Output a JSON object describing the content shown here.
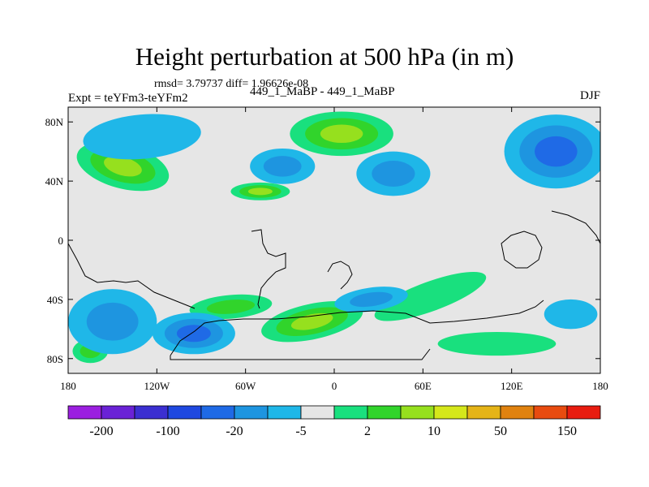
{
  "chart_data": {
    "type": "heatmap",
    "title": "Height perturbation at 500 hPa (in m)",
    "stats_text": "rmsd= 3.79737  diff= 1.96626e-08",
    "left_label": "Expt = teYFm3-teYFm2",
    "center_label": "449_1_MaBP - 449_1_MaBP",
    "right_label": "DJF",
    "x_ticks": [
      "180",
      "120W",
      "60W",
      "0",
      "60E",
      "120E",
      "180"
    ],
    "x_tick_values": [
      -180,
      -120,
      -60,
      0,
      60,
      120,
      180
    ],
    "y_ticks": [
      "80N",
      "40N",
      "0",
      "40S",
      "80S"
    ],
    "y_tick_values": [
      80,
      40,
      0,
      -40,
      -80
    ],
    "xlim": [
      -180,
      180
    ],
    "ylim": [
      -90,
      90
    ],
    "colorbar": {
      "colors": [
        "#9b1fe0",
        "#6a22d6",
        "#3b2fd1",
        "#1f48e0",
        "#1f6ae6",
        "#1e95e0",
        "#1fb7e8",
        "#e6e6e6",
        "#19e07e",
        "#31d42b",
        "#96e01e",
        "#d5e71a",
        "#e5b417",
        "#e0820f",
        "#e84b10",
        "#e81c10"
      ],
      "labels": [
        "-200",
        "-100",
        "-20",
        "-5",
        "2",
        "10",
        "50",
        "150"
      ]
    },
    "features": [
      {
        "name": "pos-n-pacific",
        "lon": -143,
        "lat": 50,
        "rlon": 32,
        "rlat": 15,
        "rot": -15,
        "levels": [
          "#19e07e",
          "#31d42b",
          "#96e01e"
        ]
      },
      {
        "name": "pos-n-atlantic-arctic",
        "lon": 5,
        "lat": 72,
        "rlon": 35,
        "rlat": 15,
        "rot": 0,
        "levels": [
          "#19e07e",
          "#31d42b",
          "#96e01e"
        ]
      },
      {
        "name": "pos-n-america",
        "lon": -50,
        "lat": 33,
        "rlon": 20,
        "rlat": 6,
        "rot": 0,
        "levels": [
          "#19e07e",
          "#31d42b",
          "#96e01e"
        ]
      },
      {
        "name": "pos-s-atlantic",
        "lon": -15,
        "lat": -55,
        "rlon": 35,
        "rlat": 12,
        "rot": 12,
        "levels": [
          "#19e07e",
          "#31d42b",
          "#96e01e"
        ]
      },
      {
        "name": "pos-s-se-pacific",
        "lon": -70,
        "lat": -45,
        "rlon": 28,
        "rlat": 8,
        "rot": 5,
        "levels": [
          "#19e07e",
          "#31d42b"
        ]
      },
      {
        "name": "pos-indian",
        "lon": 65,
        "lat": -38,
        "rlon": 40,
        "rlat": 10,
        "rot": 20,
        "levels": [
          "#19e07e"
        ]
      },
      {
        "name": "pos-s-indian",
        "lon": 110,
        "lat": -70,
        "rlon": 40,
        "rlat": 8,
        "rot": 0,
        "levels": [
          "#19e07e"
        ]
      },
      {
        "name": "pos-se-pacific",
        "lon": -165,
        "lat": -75,
        "rlon": 12,
        "rlat": 8,
        "rot": 0,
        "levels": [
          "#19e07e",
          "#31d42b"
        ]
      },
      {
        "name": "neg-arctic-pacific",
        "lon": -130,
        "lat": 70,
        "rlon": 40,
        "rlat": 15,
        "rot": 5,
        "levels": [
          "#1fb7e8"
        ]
      },
      {
        "name": "neg-n-atlantic",
        "lon": -35,
        "lat": 50,
        "rlon": 22,
        "rlat": 12,
        "rot": 0,
        "levels": [
          "#1fb7e8",
          "#1e95e0"
        ]
      },
      {
        "name": "neg-siberia",
        "lon": 40,
        "lat": 45,
        "rlon": 25,
        "rlat": 15,
        "rot": 0,
        "levels": [
          "#1fb7e8",
          "#1e95e0"
        ]
      },
      {
        "name": "neg-n-pacific-east",
        "lon": 150,
        "lat": 60,
        "rlon": 35,
        "rlat": 25,
        "rot": 0,
        "levels": [
          "#1fb7e8",
          "#1e95e0",
          "#1f6ae6"
        ]
      },
      {
        "name": "neg-s-pacific-west",
        "lon": -150,
        "lat": -55,
        "rlon": 30,
        "rlat": 22,
        "rot": 0,
        "levels": [
          "#1fb7e8",
          "#1e95e0"
        ]
      },
      {
        "name": "neg-s-pacific",
        "lon": -95,
        "lat": -63,
        "rlon": 28,
        "rlat": 14,
        "rot": 0,
        "levels": [
          "#1fb7e8",
          "#1e95e0",
          "#1f6ae6"
        ]
      },
      {
        "name": "neg-s-atlantic",
        "lon": 25,
        "lat": -40,
        "rlon": 25,
        "rlat": 8,
        "rot": 8,
        "levels": [
          "#1fb7e8",
          "#1e95e0"
        ]
      },
      {
        "name": "neg-e-pacific",
        "lon": 160,
        "lat": -50,
        "rlon": 18,
        "rlat": 10,
        "rot": 0,
        "levels": [
          "#1fb7e8"
        ]
      }
    ]
  }
}
